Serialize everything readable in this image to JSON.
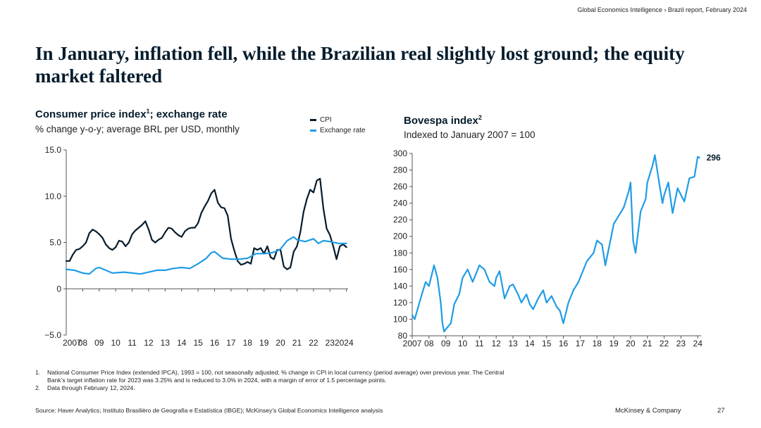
{
  "header": {
    "breadcrumb": "Global Economics Intelligence › Brazil report, February 2024"
  },
  "title": "In January, inflation fell, while the Brazilian real slightly lost ground; the equity market faltered",
  "chart_data": [
    {
      "type": "line",
      "title": "Consumer price index",
      "title_sup": "1",
      "title_suffix": "; exchange rate",
      "subtitle": "% change y-o-y; average BRL per USD, monthly",
      "xlabel": "",
      "ylabel": "",
      "xlim": [
        2007,
        2024.1
      ],
      "ylim": [
        -5,
        15
      ],
      "y_ticks": [
        -5,
        0,
        5,
        10,
        15
      ],
      "y_tick_labels": [
        "−5.0",
        "0",
        "5.0",
        "10.0",
        "15.0"
      ],
      "x_ticks": [
        2007,
        2008,
        2009,
        2010,
        2011,
        2012,
        2013,
        2014,
        2015,
        2016,
        2017,
        2018,
        2019,
        2020,
        2021,
        2022,
        2023,
        2024
      ],
      "x_tick_labels": [
        "2007",
        "08",
        "09",
        "10",
        "11",
        "12",
        "13",
        "14",
        "15",
        "16",
        "17",
        "18",
        "19",
        "20",
        "21",
        "22",
        "23",
        "2024"
      ],
      "series": [
        {
          "name": "CPI",
          "color": "#051c2c",
          "points": [
            [
              2007.0,
              3.0
            ],
            [
              2007.2,
              3.0
            ],
            [
              2007.4,
              3.7
            ],
            [
              2007.6,
              4.2
            ],
            [
              2007.8,
              4.3
            ],
            [
              2008.0,
              4.6
            ],
            [
              2008.2,
              5.0
            ],
            [
              2008.4,
              6.0
            ],
            [
              2008.6,
              6.4
            ],
            [
              2008.8,
              6.2
            ],
            [
              2009.0,
              5.9
            ],
            [
              2009.2,
              5.5
            ],
            [
              2009.4,
              4.8
            ],
            [
              2009.6,
              4.4
            ],
            [
              2009.8,
              4.2
            ],
            [
              2010.0,
              4.5
            ],
            [
              2010.2,
              5.2
            ],
            [
              2010.4,
              5.1
            ],
            [
              2010.6,
              4.6
            ],
            [
              2010.8,
              5.0
            ],
            [
              2011.0,
              5.9
            ],
            [
              2011.2,
              6.3
            ],
            [
              2011.4,
              6.6
            ],
            [
              2011.6,
              6.9
            ],
            [
              2011.8,
              7.3
            ],
            [
              2012.0,
              6.4
            ],
            [
              2012.2,
              5.3
            ],
            [
              2012.4,
              5.0
            ],
            [
              2012.6,
              5.3
            ],
            [
              2012.8,
              5.5
            ],
            [
              2013.0,
              6.1
            ],
            [
              2013.2,
              6.6
            ],
            [
              2013.4,
              6.5
            ],
            [
              2013.6,
              6.1
            ],
            [
              2013.8,
              5.8
            ],
            [
              2014.0,
              5.6
            ],
            [
              2014.2,
              6.2
            ],
            [
              2014.4,
              6.5
            ],
            [
              2014.6,
              6.6
            ],
            [
              2014.8,
              6.6
            ],
            [
              2015.0,
              7.1
            ],
            [
              2015.2,
              8.2
            ],
            [
              2015.4,
              8.9
            ],
            [
              2015.6,
              9.5
            ],
            [
              2015.8,
              10.3
            ],
            [
              2016.0,
              10.7
            ],
            [
              2016.2,
              9.3
            ],
            [
              2016.4,
              8.8
            ],
            [
              2016.6,
              8.7
            ],
            [
              2016.8,
              7.9
            ],
            [
              2017.0,
              5.4
            ],
            [
              2017.2,
              4.1
            ],
            [
              2017.4,
              3.0
            ],
            [
              2017.6,
              2.6
            ],
            [
              2017.8,
              2.7
            ],
            [
              2018.0,
              2.9
            ],
            [
              2018.2,
              2.7
            ],
            [
              2018.4,
              4.4
            ],
            [
              2018.6,
              4.2
            ],
            [
              2018.8,
              4.4
            ],
            [
              2019.0,
              3.8
            ],
            [
              2019.2,
              4.6
            ],
            [
              2019.4,
              3.4
            ],
            [
              2019.6,
              3.2
            ],
            [
              2019.8,
              4.2
            ],
            [
              2020.0,
              4.2
            ],
            [
              2020.2,
              2.4
            ],
            [
              2020.4,
              2.1
            ],
            [
              2020.6,
              2.3
            ],
            [
              2020.8,
              4.0
            ],
            [
              2021.0,
              4.6
            ],
            [
              2021.2,
              6.1
            ],
            [
              2021.4,
              8.3
            ],
            [
              2021.6,
              9.7
            ],
            [
              2021.8,
              10.7
            ],
            [
              2022.0,
              10.4
            ],
            [
              2022.2,
              11.7
            ],
            [
              2022.4,
              11.9
            ],
            [
              2022.6,
              8.7
            ],
            [
              2022.8,
              6.5
            ],
            [
              2023.0,
              5.8
            ],
            [
              2023.2,
              4.6
            ],
            [
              2023.4,
              3.2
            ],
            [
              2023.6,
              4.6
            ],
            [
              2023.8,
              4.8
            ],
            [
              2024.0,
              4.5
            ]
          ]
        },
        {
          "name": "Exchange rate",
          "color": "#1f9ce6",
          "points": [
            [
              2007.0,
              2.1
            ],
            [
              2007.5,
              2.0
            ],
            [
              2008.0,
              1.7
            ],
            [
              2008.4,
              1.6
            ],
            [
              2008.8,
              2.2
            ],
            [
              2009.0,
              2.3
            ],
            [
              2009.4,
              2.0
            ],
            [
              2009.8,
              1.7
            ],
            [
              2010.5,
              1.8
            ],
            [
              2011.0,
              1.7
            ],
            [
              2011.5,
              1.6
            ],
            [
              2012.0,
              1.8
            ],
            [
              2012.5,
              2.0
            ],
            [
              2013.0,
              2.0
            ],
            [
              2013.5,
              2.2
            ],
            [
              2014.0,
              2.3
            ],
            [
              2014.5,
              2.2
            ],
            [
              2015.0,
              2.7
            ],
            [
              2015.5,
              3.3
            ],
            [
              2015.8,
              3.9
            ],
            [
              2016.0,
              4.0
            ],
            [
              2016.5,
              3.3
            ],
            [
              2017.0,
              3.2
            ],
            [
              2017.5,
              3.2
            ],
            [
              2018.0,
              3.3
            ],
            [
              2018.5,
              3.8
            ],
            [
              2019.0,
              3.8
            ],
            [
              2019.5,
              3.9
            ],
            [
              2019.8,
              4.1
            ],
            [
              2020.0,
              4.3
            ],
            [
              2020.4,
              5.2
            ],
            [
              2020.8,
              5.6
            ],
            [
              2021.0,
              5.3
            ],
            [
              2021.5,
              5.1
            ],
            [
              2022.0,
              5.4
            ],
            [
              2022.3,
              4.9
            ],
            [
              2022.6,
              5.2
            ],
            [
              2023.0,
              5.1
            ],
            [
              2023.5,
              4.9
            ],
            [
              2024.0,
              4.9
            ]
          ]
        }
      ]
    },
    {
      "type": "line",
      "title": "Bovespa index",
      "title_sup": "2",
      "subtitle": "Indexed to January 2007 = 100",
      "xlabel": "",
      "ylabel": "",
      "xlim": [
        2007,
        2024.2
      ],
      "ylim": [
        80,
        300
      ],
      "y_ticks": [
        80,
        100,
        120,
        140,
        160,
        180,
        200,
        220,
        240,
        260,
        280,
        300
      ],
      "x_ticks": [
        2007,
        2008,
        2009,
        2010,
        2011,
        2012,
        2013,
        2014,
        2015,
        2016,
        2017,
        2018,
        2019,
        2020,
        2021,
        2022,
        2023,
        2024
      ],
      "x_tick_labels": [
        "2007",
        "08",
        "09",
        "10",
        "11",
        "12",
        "13",
        "14",
        "15",
        "16",
        "17",
        "18",
        "19",
        "20",
        "21",
        "22",
        "23",
        "24"
      ],
      "end_label": "296",
      "series": [
        {
          "name": "Bovespa",
          "color": "#1f9ce6",
          "points": [
            [
              2007.0,
              105
            ],
            [
              2007.15,
              100
            ],
            [
              2007.5,
              125
            ],
            [
              2007.8,
              145
            ],
            [
              2008.0,
              140
            ],
            [
              2008.3,
              165
            ],
            [
              2008.5,
              150
            ],
            [
              2008.7,
              120
            ],
            [
              2008.8,
              95
            ],
            [
              2008.9,
              85
            ],
            [
              2009.0,
              88
            ],
            [
              2009.3,
              95
            ],
            [
              2009.5,
              118
            ],
            [
              2009.8,
              130
            ],
            [
              2010.0,
              150
            ],
            [
              2010.3,
              160
            ],
            [
              2010.6,
              145
            ],
            [
              2010.9,
              160
            ],
            [
              2011.0,
              165
            ],
            [
              2011.3,
              160
            ],
            [
              2011.6,
              145
            ],
            [
              2011.9,
              140
            ],
            [
              2012.0,
              150
            ],
            [
              2012.2,
              158
            ],
            [
              2012.5,
              125
            ],
            [
              2012.8,
              140
            ],
            [
              2013.0,
              142
            ],
            [
              2013.3,
              130
            ],
            [
              2013.5,
              120
            ],
            [
              2013.8,
              130
            ],
            [
              2014.0,
              118
            ],
            [
              2014.2,
              112
            ],
            [
              2014.5,
              125
            ],
            [
              2014.8,
              135
            ],
            [
              2015.0,
              120
            ],
            [
              2015.3,
              128
            ],
            [
              2015.6,
              115
            ],
            [
              2015.8,
              110
            ],
            [
              2016.0,
              95
            ],
            [
              2016.3,
              120
            ],
            [
              2016.6,
              135
            ],
            [
              2016.9,
              145
            ],
            [
              2017.0,
              150
            ],
            [
              2017.4,
              170
            ],
            [
              2017.8,
              180
            ],
            [
              2018.0,
              195
            ],
            [
              2018.3,
              190
            ],
            [
              2018.5,
              165
            ],
            [
              2018.8,
              195
            ],
            [
              2019.0,
              215
            ],
            [
              2019.3,
              225
            ],
            [
              2019.6,
              235
            ],
            [
              2019.9,
              255
            ],
            [
              2020.0,
              265
            ],
            [
              2020.15,
              195
            ],
            [
              2020.3,
              180
            ],
            [
              2020.6,
              230
            ],
            [
              2020.9,
              245
            ],
            [
              2021.0,
              265
            ],
            [
              2021.3,
              285
            ],
            [
              2021.45,
              298
            ],
            [
              2021.7,
              265
            ],
            [
              2021.9,
              240
            ],
            [
              2022.0,
              250
            ],
            [
              2022.25,
              265
            ],
            [
              2022.5,
              228
            ],
            [
              2022.8,
              258
            ],
            [
              2023.0,
              250
            ],
            [
              2023.2,
              242
            ],
            [
              2023.5,
              270
            ],
            [
              2023.8,
              272
            ],
            [
              2024.0,
              296
            ],
            [
              2024.1,
              295
            ]
          ]
        }
      ]
    }
  ],
  "legend": {
    "cpi_label": "CPI",
    "fx_label": "Exchange rate"
  },
  "footnotes": [
    {
      "num": "1.",
      "text": "National Consumer Price Index (extended IPCA), 1993 = 100, not seasonally adjusted; % change in CPI in local currency (period average) over previous year. The Central Bank’s target inflation rate for 2023 was 3.25% and is reduced to 3.0% in 2024, with a margin of error of 1.5 percentage points."
    },
    {
      "num": "2.",
      "text": "Data through February 12, 2024."
    }
  ],
  "source": "Source: Haver Analytics; Instituto Brasilièro de Geografia e Estatística (IBGE); McKinsey’s Global Economics Intelligence analysis",
  "brand": "McKinsey & Company",
  "page_number": "27"
}
